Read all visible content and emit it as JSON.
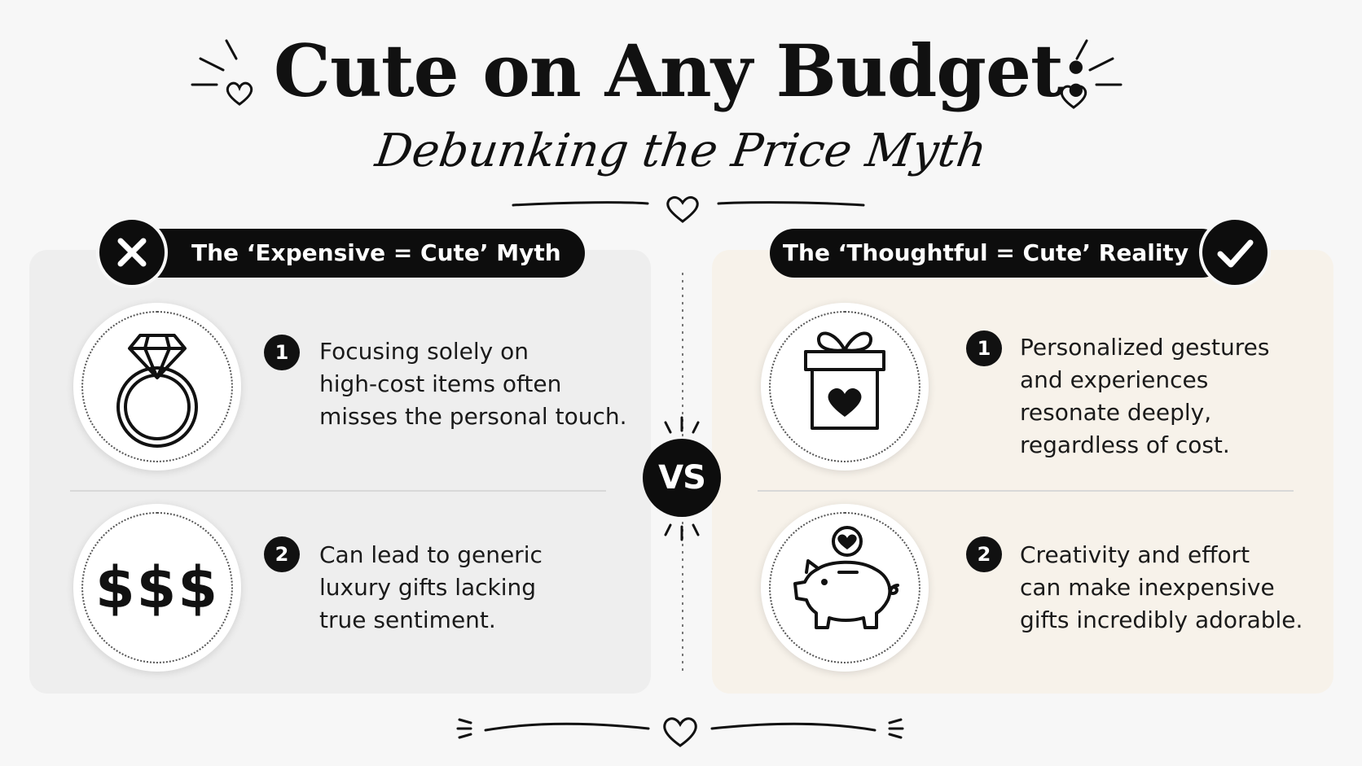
{
  "header": {
    "title": "Cute on Any Budget:",
    "subtitle": "Debunking the Price Myth"
  },
  "myth": {
    "label": "The ‘Expensive = Cute’ Myth",
    "badge_icon": "x-icon",
    "items": [
      {
        "number": "1",
        "icon": "diamond-ring-icon",
        "lines": [
          "Focusing solely on",
          "high-cost items often",
          "misses the personal touch."
        ]
      },
      {
        "number": "2",
        "icon": "dollar-signs-icon",
        "icon_text": "$$$",
        "lines": [
          "Can lead to generic",
          "luxury gifts lacking",
          "true sentiment."
        ]
      }
    ]
  },
  "reality": {
    "label": "The ‘Thoughtful = Cute’ Reality",
    "badge_icon": "checkmark-icon",
    "items": [
      {
        "number": "1",
        "icon": "gift-box-heart-icon",
        "lines": [
          "Personalized gestures",
          "and experiences",
          "resonate deeply,",
          "regardless of cost."
        ]
      },
      {
        "number": "2",
        "icon": "piggy-bank-heart-icon",
        "lines": [
          "Creativity and effort",
          "can make inexpensive",
          "gifts incredibly adorable."
        ]
      }
    ]
  },
  "vs_label": "VS",
  "colors": {
    "background": "#f7f7f7",
    "ink": "#0d0d0d",
    "myth_panel": "#eeeeee",
    "reality_panel": "#f7f2ea"
  }
}
